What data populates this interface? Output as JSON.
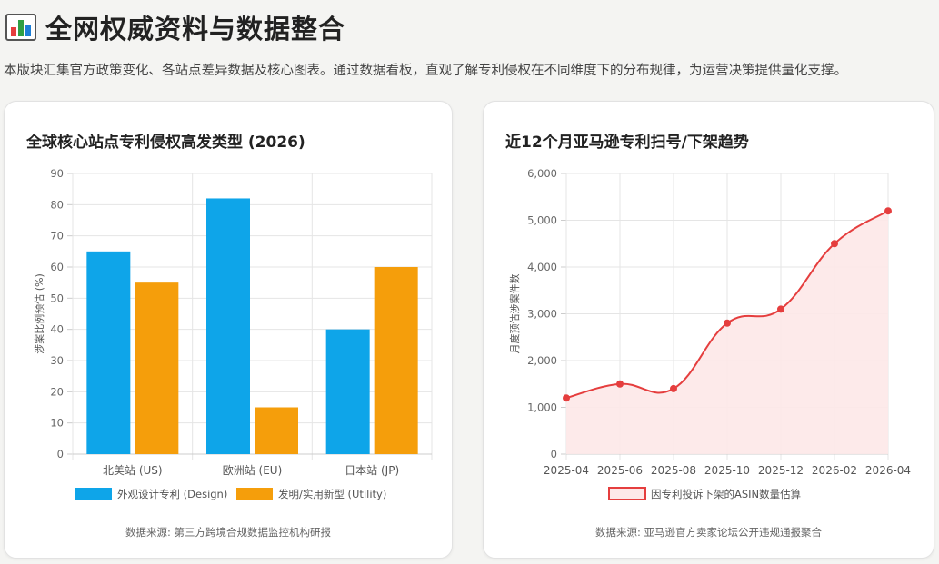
{
  "page": {
    "title": "全网权威资料与数据整合",
    "subtitle": "本版块汇集官方政策变化、各站点差异数据及核心图表。通过数据看板，直观了解专利侵权在不同维度下的分布规律，为运营决策提供量化支撑。"
  },
  "colors": {
    "design": "#0ea5e9",
    "utility": "#f59e0b",
    "trend_line": "#e53e3e",
    "trend_fill": "#fde8e8"
  },
  "chart_data": [
    {
      "type": "bar",
      "title": "全球核心站点专利侵权高发类型 (2026)",
      "categories": [
        "北美站 (US)",
        "欧洲站 (EU)",
        "日本站 (JP)"
      ],
      "series": [
        {
          "name": "外观设计专利 (Design)",
          "values": [
            65,
            82,
            40
          ],
          "color": "#0ea5e9"
        },
        {
          "name": "发明/实用新型 (Utility)",
          "values": [
            55,
            15,
            60
          ],
          "color": "#f59e0b"
        }
      ],
      "ylabel": "涉案比例预估 (%)",
      "ylim": [
        0,
        90
      ],
      "yticks": [
        0,
        10,
        20,
        30,
        40,
        50,
        60,
        70,
        80,
        90
      ],
      "legend": "bottom",
      "grid": true,
      "source": "数据来源: 第三方跨境合规数据监控机构研报"
    },
    {
      "type": "area",
      "title": "近12个月亚马逊专利扫号/下架趋势",
      "x": [
        "2025-04",
        "2025-06",
        "2025-08",
        "2025-10",
        "2025-12",
        "2026-02",
        "2026-04"
      ],
      "series": [
        {
          "name": "因专利投诉下架的ASIN数量估算",
          "values": [
            1200,
            1500,
            1400,
            2800,
            3100,
            4500,
            5200
          ],
          "color": "#e53e3e"
        }
      ],
      "ylabel": "月度预估涉案件数",
      "ylim": [
        0,
        6000
      ],
      "yticks": [
        0,
        1000,
        2000,
        3000,
        4000,
        5000,
        6000
      ],
      "ytick_labels": [
        "0",
        "1,000",
        "2,000",
        "3,000",
        "4,000",
        "5,000",
        "6,000"
      ],
      "legend": "bottom",
      "grid": true,
      "source": "数据来源: 亚马逊官方卖家论坛公开违规通报聚合"
    }
  ]
}
